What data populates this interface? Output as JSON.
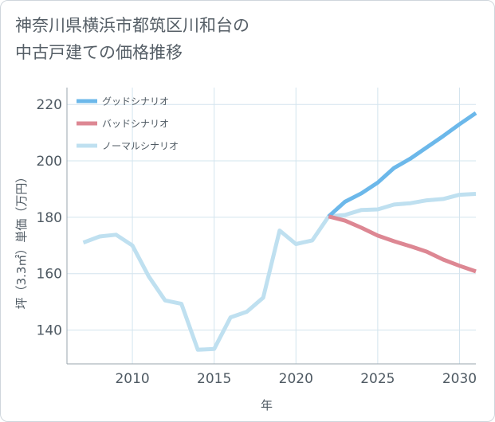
{
  "title": "神奈川県横浜市都筑区川和台の\n中古戸建ての価格推移",
  "chart_data": {
    "type": "line",
    "title": "神奈川県横浜市都筑区川和台の中古戸建ての価格推移",
    "xlabel": "年",
    "ylabel": "坪（3.3㎡）単価（万円）",
    "xlim": [
      2006,
      2031
    ],
    "ylim": [
      128,
      226
    ],
    "xticks": [
      2010,
      2015,
      2020,
      2025,
      2030
    ],
    "yticks": [
      140,
      160,
      180,
      200,
      220
    ],
    "grid": true,
    "legend_position": "top-left",
    "series": [
      {
        "name": "グッドシナリオ",
        "color": "#6cb8ea",
        "x": [
          2022,
          2023,
          2024,
          2025,
          2026,
          2027,
          2028,
          2029,
          2030,
          2031
        ],
        "values": [
          180.3,
          185.5,
          188.5,
          192.3,
          197.5,
          200.8,
          204.8,
          208.8,
          213.0,
          217.0
        ]
      },
      {
        "name": "バッドシナリオ",
        "color": "#dd8793",
        "x": [
          2022,
          2023,
          2024,
          2025,
          2026,
          2027,
          2028,
          2029,
          2030,
          2031
        ],
        "values": [
          180.3,
          178.8,
          176.3,
          173.5,
          171.5,
          169.7,
          167.8,
          165.0,
          162.8,
          160.8
        ]
      },
      {
        "name": "ノーマルシナリオ",
        "color": "#bfe0f0",
        "x": [
          2007,
          2008,
          2009,
          2010,
          2011,
          2012,
          2013,
          2014,
          2015,
          2016,
          2017,
          2018,
          2019,
          2020,
          2021,
          2022,
          2023,
          2024,
          2025,
          2026,
          2027,
          2028,
          2029,
          2030,
          2031
        ],
        "values": [
          171.0,
          173.2,
          173.8,
          170.0,
          159.0,
          150.5,
          149.3,
          133.0,
          133.3,
          144.5,
          146.5,
          151.5,
          175.3,
          170.5,
          171.8,
          180.3,
          180.8,
          182.6,
          182.8,
          184.5,
          185.0,
          186.0,
          186.5,
          188.0,
          188.3
        ]
      }
    ]
  }
}
